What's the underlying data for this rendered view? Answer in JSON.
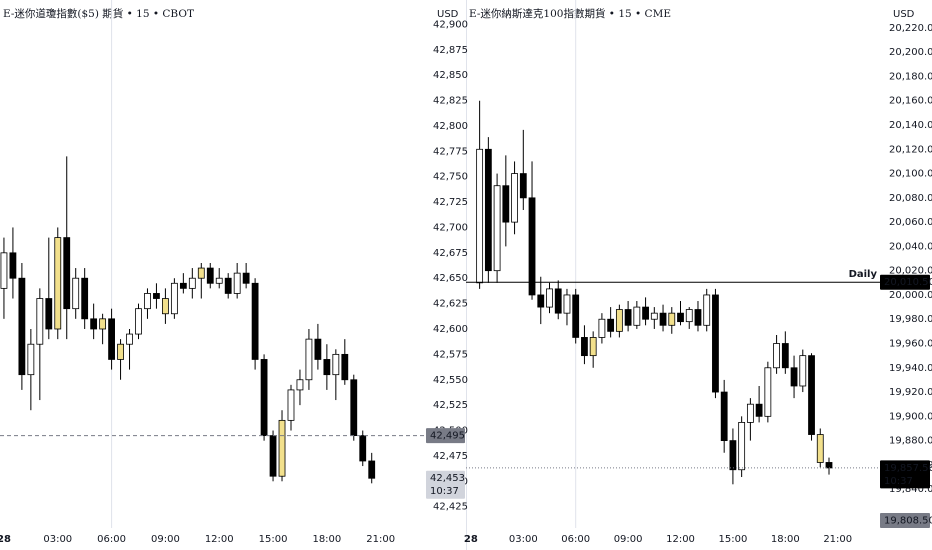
{
  "chart_data": [
    {
      "type": "candlestick",
      "title": "E-迷你道瓊指數($5) 期貨 • 15 • CBOT",
      "currency": "USD",
      "x": [
        0,
        0.5,
        1,
        1.5,
        2,
        2.5,
        3,
        3.5,
        4,
        4.5,
        5,
        5.5,
        6,
        6.5,
        7,
        7.5,
        8,
        8.5,
        9,
        9.5,
        10,
        10.5,
        11,
        11.5,
        12,
        12.5,
        13,
        13.5,
        14,
        14.5,
        15,
        15.5,
        16,
        16.5,
        17,
        17.5,
        18,
        18.5,
        19,
        19.5,
        20,
        20.5
      ],
      "open": [
        42640,
        42675,
        42650,
        42555,
        42585,
        42630,
        42600,
        42690,
        42620,
        42650,
        42610,
        42600,
        42610,
        42570,
        42585,
        42595,
        42620,
        42635,
        42630,
        42615,
        42645,
        42640,
        42650,
        42660,
        42645,
        42650,
        42635,
        42655,
        42645,
        42570,
        42495,
        42455,
        42510,
        42540,
        42550,
        42590,
        42570,
        42555,
        42575,
        42550,
        42495,
        42470
      ],
      "high": [
        42690,
        42700,
        42665,
        42600,
        42640,
        42690,
        42700,
        42770,
        42660,
        42660,
        42625,
        42615,
        42620,
        42590,
        42600,
        42625,
        42640,
        42645,
        42640,
        42650,
        42655,
        42660,
        42665,
        42665,
        42660,
        42655,
        42665,
        42665,
        42650,
        42575,
        42500,
        42520,
        42545,
        42560,
        42600,
        42605,
        42585,
        42580,
        42590,
        42555,
        42500,
        42478
      ],
      "low": [
        42610,
        42630,
        42540,
        42520,
        42530,
        42590,
        42590,
        42590,
        42610,
        42600,
        42590,
        42585,
        42560,
        42550,
        42560,
        42590,
        42610,
        42620,
        42605,
        42610,
        42635,
        42630,
        42630,
        42640,
        42640,
        42630,
        42630,
        42640,
        42560,
        42490,
        42450,
        42450,
        42500,
        42525,
        42540,
        42560,
        42540,
        42530,
        42545,
        42490,
        42465,
        42448
      ],
      "close": [
        42675,
        42650,
        42555,
        42585,
        42630,
        42600,
        42690,
        42620,
        42650,
        42610,
        42600,
        42610,
        42570,
        42585,
        42595,
        42620,
        42635,
        42630,
        42615,
        42645,
        42640,
        42650,
        42660,
        42645,
        42650,
        42635,
        42655,
        42645,
        42570,
        42495,
        42455,
        42510,
        42540,
        42550,
        42590,
        42570,
        42555,
        42575,
        42550,
        42495,
        42470,
        42453
      ],
      "highlight": [
        6,
        11,
        13,
        18,
        22,
        31
      ],
      "up_color": "#ffffff",
      "down_color": "#000000",
      "highlight_color": "#f2e08c",
      "outline_color": "#000000",
      "xlim": [
        -0.22,
        23.47
      ],
      "xticks": [
        {
          "value": 0,
          "label": "28"
        },
        {
          "value": 3,
          "label": "03:00"
        },
        {
          "value": 6,
          "label": "06:00"
        },
        {
          "value": 9,
          "label": "09:00"
        },
        {
          "value": 12,
          "label": "12:00"
        },
        {
          "value": 15,
          "label": "15:00"
        },
        {
          "value": 18,
          "label": "18:00"
        },
        {
          "value": 21,
          "label": "21:00"
        }
      ],
      "ylim": [
        42404,
        42924
      ],
      "yticks": [
        {
          "value": 42425,
          "label": "42,425"
        },
        {
          "value": 42450,
          "label": "42,450"
        },
        {
          "value": 42475,
          "label": "42,475"
        },
        {
          "value": 42500,
          "label": "42,500"
        },
        {
          "value": 42525,
          "label": "42,525"
        },
        {
          "value": 42550,
          "label": "42,550"
        },
        {
          "value": 42575,
          "label": "42,575"
        },
        {
          "value": 42600,
          "label": "42,600"
        },
        {
          "value": 42625,
          "label": "42,625"
        },
        {
          "value": 42650,
          "label": "42,650"
        },
        {
          "value": 42675,
          "label": "42,675"
        },
        {
          "value": 42700,
          "label": "42,700"
        },
        {
          "value": 42725,
          "label": "42,725"
        },
        {
          "value": 42750,
          "label": "42,750"
        },
        {
          "value": 42775,
          "label": "42,775"
        },
        {
          "value": 42800,
          "label": "42,800"
        },
        {
          "value": 42825,
          "label": "42,825"
        },
        {
          "value": 42850,
          "label": "42,850"
        },
        {
          "value": 42875,
          "label": "42,875"
        },
        {
          "value": 42900,
          "label": "42,900"
        }
      ],
      "price_lines": [
        {
          "value": 42495,
          "label": "42,495",
          "style": "dashed",
          "box_color": "#787b86",
          "text_color": "#ffffff"
        },
        {
          "value": 42453,
          "label": "42,453",
          "countdown": "10:37",
          "style": "none",
          "box_color": "#d1d4dc",
          "text_color": "#131722"
        }
      ]
    },
    {
      "type": "candlestick",
      "title": "E-迷你納斯達克100指數期貨 • 15 • CME",
      "currency": "USD",
      "x": [
        0.5,
        1,
        1.5,
        2,
        2.5,
        3,
        3.5,
        4,
        4.5,
        5,
        5.5,
        6,
        6.5,
        7,
        7.5,
        8,
        8.5,
        9,
        9.5,
        10,
        10.5,
        11,
        11.5,
        12,
        12.5,
        13,
        13.5,
        14,
        14.5,
        15,
        15.5,
        16,
        16.5,
        17,
        17.5,
        18,
        18.5,
        19,
        19.5,
        20,
        20.5
      ],
      "open": [
        20010,
        20120,
        20020,
        20090,
        20060,
        20100,
        20080,
        20000,
        19990,
        20005,
        19985,
        20000,
        19965,
        19950,
        19965,
        19980,
        19970,
        19988,
        19975,
        19990,
        19980,
        19985,
        19975,
        19985,
        19978,
        19988,
        19975,
        20000,
        19920,
        19880,
        19856,
        19895,
        19910,
        19900,
        19940,
        19960,
        19940,
        19925,
        19950,
        19885,
        19862
      ],
      "high": [
        20160,
        20130,
        20100,
        20115,
        20110,
        20136,
        20110,
        20015,
        20010,
        20012,
        20005,
        20005,
        19975,
        19970,
        19985,
        19990,
        19992,
        19995,
        19995,
        19998,
        19990,
        19992,
        19990,
        19995,
        19990,
        19995,
        20005,
        20005,
        19930,
        19890,
        19900,
        19915,
        19925,
        19945,
        19967,
        19970,
        19950,
        19955,
        19952,
        19890,
        19866
      ],
      "low": [
        20005,
        20010,
        20010,
        20040,
        20050,
        20070,
        19996,
        19976,
        19985,
        19980,
        19975,
        19960,
        19943,
        19940,
        19960,
        19965,
        19965,
        19970,
        19972,
        19975,
        19972,
        19970,
        19968,
        19975,
        19972,
        19970,
        19970,
        19915,
        19870,
        19844,
        19850,
        19880,
        19895,
        19895,
        19935,
        19935,
        19915,
        19920,
        19880,
        19858,
        19852
      ],
      "close": [
        20120,
        20020,
        20090,
        20060,
        20100,
        20080,
        20000,
        19990,
        20005,
        19985,
        20000,
        19965,
        19950,
        19965,
        19980,
        19970,
        19988,
        19975,
        19990,
        19980,
        19985,
        19975,
        19985,
        19978,
        19988,
        19975,
        20000,
        19920,
        19880,
        19856,
        19895,
        19910,
        19900,
        19940,
        19960,
        19940,
        19925,
        19950,
        19885,
        19862,
        19857.5
      ],
      "highlight": [
        13,
        16,
        22,
        39
      ],
      "up_color": "#ffffff",
      "down_color": "#000000",
      "highlight_color": "#f2e08c",
      "outline_color": "#000000",
      "xlim": [
        -0.28,
        23.42
      ],
      "xticks": [
        {
          "value": 0,
          "label": "28"
        },
        {
          "value": 3,
          "label": "03:00"
        },
        {
          "value": 6,
          "label": "06:00"
        },
        {
          "value": 9,
          "label": "09:00"
        },
        {
          "value": 12,
          "label": "12:00"
        },
        {
          "value": 15,
          "label": "15:00"
        },
        {
          "value": 18,
          "label": "18:00"
        },
        {
          "value": 21,
          "label": "21:00"
        }
      ],
      "ylim": [
        19808,
        20243
      ],
      "yticks": [
        {
          "value": 19840,
          "label": "19,840.00"
        },
        {
          "value": 19860,
          "label": "19,860.00"
        },
        {
          "value": 19880,
          "label": "19,880.00"
        },
        {
          "value": 19900,
          "label": "19,900.00"
        },
        {
          "value": 19920,
          "label": "19,920.00"
        },
        {
          "value": 19940,
          "label": "19,940.00"
        },
        {
          "value": 19960,
          "label": "19,960.00"
        },
        {
          "value": 19980,
          "label": "19,980.00"
        },
        {
          "value": 20000,
          "label": "20,000.00"
        },
        {
          "value": 20020,
          "label": "20,020.00"
        },
        {
          "value": 20040,
          "label": "20,040.00"
        },
        {
          "value": 20060,
          "label": "20,060.00"
        },
        {
          "value": 20080,
          "label": "20,080.00"
        },
        {
          "value": 20100,
          "label": "20,100.00"
        },
        {
          "value": 20120,
          "label": "20,120.00"
        },
        {
          "value": 20140,
          "label": "20,140.00"
        },
        {
          "value": 20160,
          "label": "20,160.00"
        },
        {
          "value": 20180,
          "label": "20,180.00"
        },
        {
          "value": 20200,
          "label": "20,200.00"
        },
        {
          "value": 20220,
          "label": "20,220.00"
        }
      ],
      "price_lines": [
        {
          "name": "Daily",
          "value": 20010.5,
          "label": "20,010.50",
          "style": "solid",
          "box_color": "#000000",
          "text_color": "#ffffff"
        },
        {
          "value": 19857.5,
          "label": "19,857.50",
          "countdown": "10:37",
          "style": "dotted",
          "box_color": "#000000",
          "text_color": "#ffffff"
        },
        {
          "value": 19808.5,
          "label": "19,808.50",
          "style": "none",
          "box_color": "#787b86",
          "text_color": "#ffffff"
        }
      ]
    }
  ]
}
